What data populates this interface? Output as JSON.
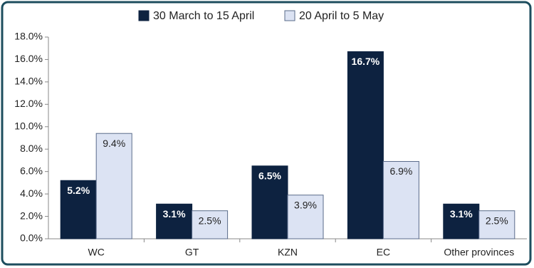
{
  "chart_data": {
    "type": "bar",
    "categories": [
      "WC",
      "GT",
      "KZN",
      "EC",
      "Other provinces"
    ],
    "series": [
      {
        "name": "30 March to 15 April",
        "color": "#0d2240",
        "values": [
          5.2,
          3.1,
          6.5,
          16.7,
          3.1
        ],
        "value_labels": [
          "5.2%",
          "3.1%",
          "6.5%",
          "16.7%",
          "3.1%"
        ]
      },
      {
        "name": "20 April to 5 May",
        "color": "#dce3f3",
        "values": [
          9.4,
          2.5,
          3.9,
          6.9,
          2.5
        ],
        "value_labels": [
          "9.4%",
          "2.5%",
          "3.9%",
          "6.9%",
          "2.5%"
        ]
      }
    ],
    "ylim": [
      0,
      18
    ],
    "yticks": [
      {
        "value": 0,
        "label": "0.0%"
      },
      {
        "value": 2,
        "label": "2.0%"
      },
      {
        "value": 4,
        "label": "4.0%"
      },
      {
        "value": 6,
        "label": "6.0%"
      },
      {
        "value": 8,
        "label": "8.0%"
      },
      {
        "value": 10,
        "label": "10.0%"
      },
      {
        "value": 12,
        "label": "12.0%"
      },
      {
        "value": 14,
        "label": "14.0%"
      },
      {
        "value": 16,
        "label": "16.0%"
      },
      {
        "value": 18,
        "label": "18.0%"
      }
    ],
    "legend": "top"
  }
}
